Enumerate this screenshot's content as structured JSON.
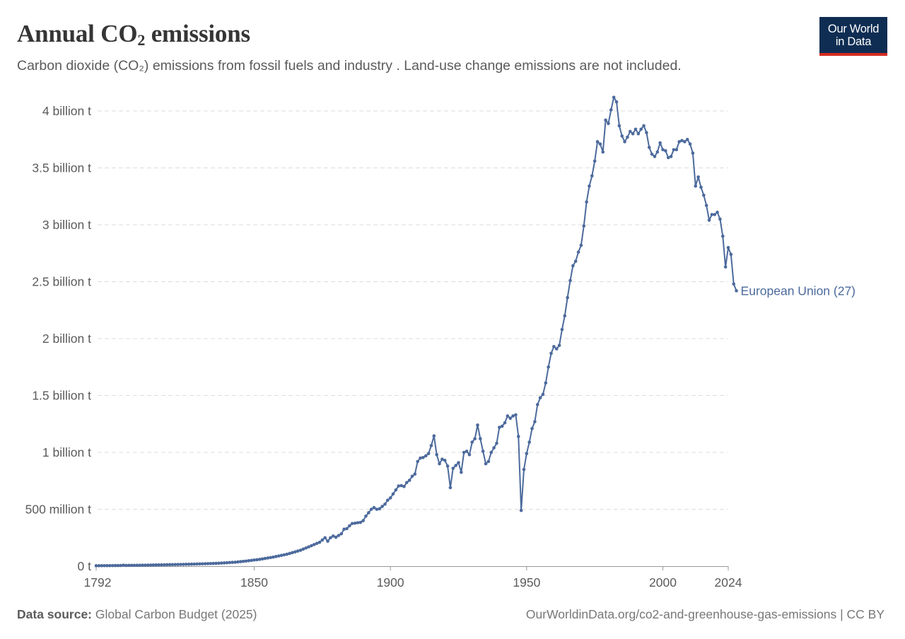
{
  "header": {
    "title_pre": "Annual CO",
    "title_sub": "2",
    "title_post": " emissions",
    "subtitle_pre": "Carbon dioxide (CO",
    "subtitle_sub": "₂",
    "subtitle_post": ") emissions from fossil fuels and industry . Land-use change emissions are not included."
  },
  "logo": {
    "line1": "Our World",
    "line2": "in Data"
  },
  "footer": {
    "source_label": "Data source:",
    "source_text": " Global Carbon Budget (2025)",
    "right_text": "OurWorldinData.org/co2-and-greenhouse-gas-emissions | CC BY"
  },
  "colors": {
    "series": "#4c6a9c",
    "grid": "#dddddd",
    "axis": "#999999",
    "tick_text": "#5b5b5b"
  },
  "chart_data": {
    "type": "line",
    "xlim": [
      1792,
      2024
    ],
    "ylim": [
      0,
      4000000000
    ],
    "grid": true,
    "y_grid_style": "dashed",
    "y_ticks": [
      {
        "value": 0,
        "label": "0 t"
      },
      {
        "value": 500000000,
        "label": "500 million t"
      },
      {
        "value": 1000000000,
        "label": "1 billion t"
      },
      {
        "value": 1500000000,
        "label": "1.5 billion t"
      },
      {
        "value": 2000000000,
        "label": "2 billion t"
      },
      {
        "value": 2500000000,
        "label": "2.5 billion t"
      },
      {
        "value": 3000000000,
        "label": "3 billion t"
      },
      {
        "value": 3500000000,
        "label": "3.5 billion t"
      },
      {
        "value": 4000000000,
        "label": "4 billion t"
      }
    ],
    "x_ticks": [
      {
        "value": 1792,
        "label": "1792"
      },
      {
        "value": 1850,
        "label": "1850"
      },
      {
        "value": 1900,
        "label": "1900"
      },
      {
        "value": 1950,
        "label": "1950"
      },
      {
        "value": 2000,
        "label": "2000"
      },
      {
        "value": 2024,
        "label": "2024"
      }
    ],
    "series": [
      {
        "name": "European Union (27)",
        "x_start": 1792,
        "x_step": 1,
        "values": [
          4000000,
          4200000,
          4400000,
          4600000,
          4800000,
          5000000,
          5300000,
          5600000,
          5900000,
          6200000,
          9000000,
          6800000,
          7100000,
          7400000,
          7700000,
          8000000,
          8400000,
          8800000,
          9200000,
          9600000,
          10000000,
          10500000,
          11000000,
          11500000,
          12000000,
          12500000,
          13000000,
          13500000,
          14000000,
          14500000,
          15000000,
          15600000,
          16200000,
          16800000,
          17400000,
          18000000,
          18700000,
          19400000,
          20100000,
          20800000,
          21500000,
          22400000,
          23300000,
          24200000,
          25100000,
          26000000,
          27500000,
          29000000,
          30500000,
          32000000,
          33500000,
          35000000,
          37500000,
          40000000,
          42500000,
          45000000,
          48000000,
          51000000,
          54000000,
          57000000,
          60000000,
          64000000,
          68000000,
          72000000,
          76000000,
          80000000,
          85000000,
          90000000,
          95000000,
          100000000,
          105000000,
          112000000,
          119000000,
          126000000,
          133000000,
          140000000,
          150000000,
          160000000,
          170000000,
          180000000,
          190000000,
          200000000,
          210000000,
          230000000,
          250000000,
          220000000,
          250000000,
          265000000,
          255000000,
          270000000,
          285000000,
          325000000,
          330000000,
          355000000,
          375000000,
          378000000,
          382000000,
          385000000,
          400000000,
          440000000,
          470000000,
          500000000,
          515000000,
          500000000,
          505000000,
          525000000,
          545000000,
          580000000,
          600000000,
          635000000,
          670000000,
          705000000,
          708000000,
          700000000,
          735000000,
          755000000,
          790000000,
          810000000,
          920000000,
          950000000,
          955000000,
          970000000,
          990000000,
          1060000000,
          1145000000,
          980000000,
          900000000,
          940000000,
          930000000,
          880000000,
          690000000,
          860000000,
          885000000,
          910000000,
          825000000,
          1000000000,
          1010000000,
          980000000,
          1090000000,
          1120000000,
          1240000000,
          1120000000,
          1010000000,
          900000000,
          920000000,
          1000000000,
          1040000000,
          1080000000,
          1220000000,
          1230000000,
          1260000000,
          1320000000,
          1300000000,
          1320000000,
          1330000000,
          1140000000,
          490000000,
          850000000,
          990000000,
          1090000000,
          1210000000,
          1270000000,
          1420000000,
          1480000000,
          1510000000,
          1610000000,
          1750000000,
          1870000000,
          1930000000,
          1910000000,
          1940000000,
          2080000000,
          2200000000,
          2360000000,
          2510000000,
          2640000000,
          2680000000,
          2760000000,
          2820000000,
          2990000000,
          3200000000,
          3340000000,
          3430000000,
          3560000000,
          3730000000,
          3710000000,
          3640000000,
          3920000000,
          3890000000,
          4010000000,
          4120000000,
          4080000000,
          3870000000,
          3780000000,
          3730000000,
          3770000000,
          3820000000,
          3800000000,
          3840000000,
          3800000000,
          3840000000,
          3870000000,
          3810000000,
          3680000000,
          3620000000,
          3600000000,
          3640000000,
          3720000000,
          3660000000,
          3650000000,
          3590000000,
          3600000000,
          3660000000,
          3660000000,
          3730000000,
          3740000000,
          3730000000,
          3750000000,
          3710000000,
          3630000000,
          3340000000,
          3420000000,
          3330000000,
          3260000000,
          3170000000,
          3040000000,
          3090000000,
          3090000000,
          3110000000,
          3050000000,
          2900000000,
          2630000000,
          2800000000,
          2740000000,
          2480000000,
          2420000000
        ]
      }
    ]
  }
}
